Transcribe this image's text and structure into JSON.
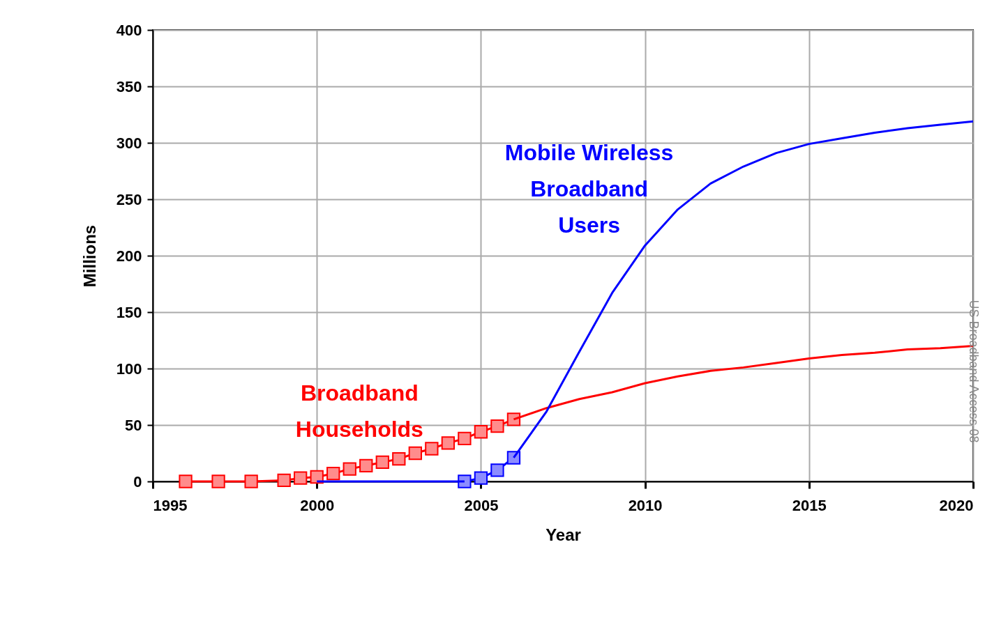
{
  "chart_data": {
    "type": "line",
    "xlabel": "Year",
    "ylabel": "Millions",
    "xlim": [
      1995,
      2020
    ],
    "xticks": [
      1995,
      2000,
      2005,
      2010,
      2015,
      2020
    ],
    "ylim": [
      0,
      400
    ],
    "yticks": [
      0,
      50,
      100,
      150,
      200,
      250,
      300,
      350,
      400
    ],
    "grid": true,
    "legend": false,
    "line_style": "solid",
    "annotations": [
      "US Broadband Access 08"
    ],
    "series": [
      {
        "name": "Broadband Households",
        "color": "#ff0000",
        "marker": "square",
        "x": [
          1996,
          1997,
          1998,
          1999,
          1999.5,
          2000,
          2000.5,
          2001,
          2001.5,
          2002,
          2002.5,
          2003,
          2003.5,
          2004,
          2004.5,
          2005,
          2005.5,
          2006
        ],
        "values": [
          0,
          0,
          0,
          1,
          3,
          4,
          7,
          11,
          14,
          17,
          20,
          25,
          29,
          34,
          38,
          44,
          49,
          55
        ]
      },
      {
        "color": "#ff0000",
        "marker": "none",
        "x": [
          2006,
          2007,
          2008,
          2009,
          2010,
          2011,
          2012,
          2013,
          2014,
          2015,
          2016,
          2017,
          2018,
          2019,
          2020
        ],
        "values": [
          55,
          65,
          73,
          79,
          87,
          93,
          98,
          101,
          105,
          109,
          112,
          114,
          117,
          118,
          120
        ]
      },
      {
        "name": "Mobile Wireless Broadband Users",
        "color": "#0000ff",
        "marker": "square",
        "x": [
          2004.5,
          2005,
          2005.5,
          2006
        ],
        "values": [
          0,
          3,
          10,
          21
        ]
      },
      {
        "color": "#0000ff",
        "marker": "none",
        "x": [
          2000,
          2004.5,
          2005,
          2006,
          2007,
          2008,
          2009,
          2010,
          2011,
          2012,
          2013,
          2014,
          2015,
          2016,
          2017,
          2018,
          2019,
          2020
        ],
        "values": [
          0,
          0,
          null,
          21,
          62,
          115,
          167,
          209,
          241,
          264,
          279,
          291,
          299,
          304,
          309,
          313,
          316,
          319
        ]
      }
    ]
  }
}
